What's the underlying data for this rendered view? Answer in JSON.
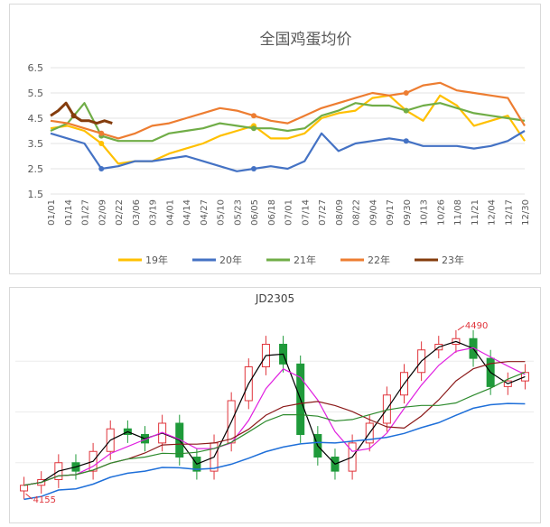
{
  "chart_data": [
    {
      "type": "line",
      "title": "全国鸡蛋均价",
      "xlabel": "",
      "ylabel": "",
      "ylim": [
        1.5,
        6.5
      ],
      "yticks": [
        "6.5",
        "5.5",
        "4.5",
        "3.5",
        "2.5",
        "1.5"
      ],
      "x_ticks": [
        "01/01",
        "01/14",
        "01/27",
        "02/09",
        "02/22",
        "03/06",
        "03/19",
        "04/01",
        "04/14",
        "04/27",
        "05/10",
        "05/23",
        "06/05",
        "06/18",
        "07/01",
        "07/14",
        "07/27",
        "08/09",
        "08/22",
        "09/04",
        "09/17",
        "09/30",
        "10/13",
        "10/26",
        "11/08",
        "11/21",
        "12/04",
        "12/17",
        "12/30"
      ],
      "legend_position": "bottom",
      "grid": true,
      "series": [
        {
          "name": "19年",
          "color": "#ffc000",
          "values": [
            4.1,
            4.2,
            4.0,
            3.5,
            2.7,
            2.8,
            2.8,
            3.1,
            3.3,
            3.5,
            3.8,
            4.0,
            4.2,
            3.7,
            3.7,
            3.9,
            4.5,
            4.7,
            4.8,
            5.3,
            5.4,
            4.8,
            4.4,
            5.4,
            5.0,
            4.2,
            4.4,
            4.6,
            3.6
          ]
        },
        {
          "name": "20年",
          "color": "#4472c4",
          "values": [
            3.9,
            3.7,
            3.5,
            2.5,
            2.6,
            2.8,
            2.8,
            2.9,
            3.0,
            2.8,
            2.6,
            2.4,
            2.5,
            2.6,
            2.5,
            2.8,
            3.9,
            3.2,
            3.5,
            3.6,
            3.7,
            3.6,
            3.4,
            3.4,
            3.4,
            3.3,
            3.4,
            3.6,
            4.0
          ]
        },
        {
          "name": "21年",
          "color": "#70ad47",
          "values": [
            4.0,
            4.3,
            5.1,
            3.8,
            3.6,
            3.6,
            3.6,
            3.9,
            4.0,
            4.1,
            4.3,
            4.2,
            4.1,
            4.1,
            4.0,
            4.1,
            4.6,
            4.8,
            5.1,
            5.0,
            5.0,
            4.8,
            5.0,
            5.1,
            4.9,
            4.7,
            4.6,
            4.5,
            4.4
          ]
        },
        {
          "name": "22年",
          "color": "#ed7d31",
          "values": [
            4.4,
            4.3,
            4.1,
            3.9,
            3.7,
            3.9,
            4.2,
            4.3,
            4.5,
            4.7,
            4.9,
            4.8,
            4.6,
            4.4,
            4.3,
            4.6,
            4.9,
            5.1,
            5.3,
            5.5,
            5.4,
            5.5,
            5.8,
            5.9,
            5.6,
            5.5,
            5.4,
            5.3,
            4.2
          ]
        },
        {
          "name": "23年",
          "color": "#843c0c",
          "values": [
            4.6,
            4.8,
            5.1,
            4.6,
            4.4,
            4.4,
            4.3,
            4.4,
            4.3
          ]
        }
      ]
    },
    {
      "type": "candlestick",
      "title": "JD2305",
      "annotations": [
        "4490",
        "4155"
      ],
      "colors": {
        "up": "#e0343b",
        "down": "#1f9a3a"
      },
      "series": [
        {
          "name": "",
          "values": [
            3.9,
            3.92,
            3.98,
            3.95,
            4.02,
            4.1,
            4.08,
            4.05,
            4.12,
            4.0,
            3.95,
            4.05,
            4.2,
            4.32,
            4.4,
            4.33,
            4.08,
            4.0,
            3.95,
            4.05,
            4.12,
            4.22,
            4.3,
            4.38,
            4.4,
            4.42,
            4.35,
            4.25,
            4.27,
            4.3
          ]
        }
      ]
    }
  ]
}
